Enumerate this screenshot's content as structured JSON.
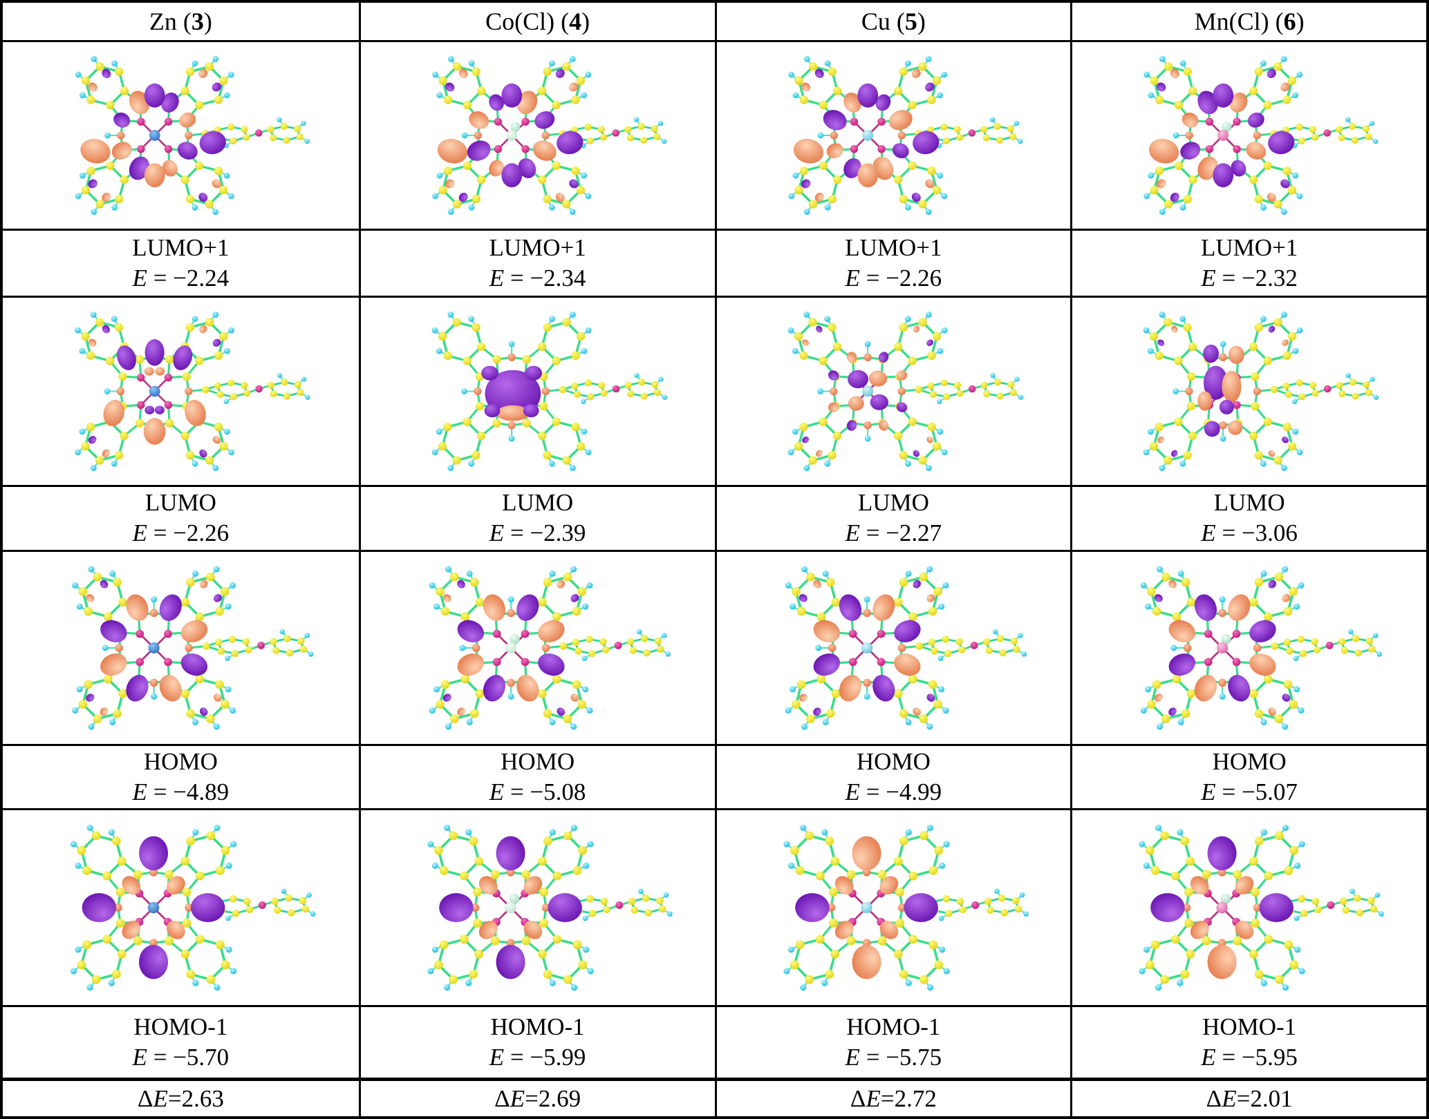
{
  "figure": {
    "type": "molecular-orbital-table",
    "symbols": {
      "e": "E",
      "equals": " = ",
      "delta": "Δ"
    },
    "row_labels": {
      "lumo1": "LUMO+1",
      "lumo": "LUMO",
      "homo": "HOMO",
      "homo1": "HOMO-1"
    },
    "palette": {
      "carbon": "#ecdf12",
      "hydrogen": "#2fc9e2",
      "nitrogen_inner": "#d02387",
      "nitrogen_meso": "#ef9273",
      "bond": "#3bdc8b",
      "lobe_positive": "#7b1fc4",
      "lobe_negative": "#ee9472",
      "background": "#ffffff",
      "border": "#000000"
    },
    "columns": [
      {
        "id": "zn",
        "header": {
          "prefix": "Zn (",
          "number": "3",
          "suffix": ")"
        },
        "metal": {
          "light": "#8cc2f2",
          "dark": "#2d6ec1"
        },
        "axial_ligand": false,
        "orbitals": {
          "lumo1": {
            "value": "−2.24",
            "pattern": "scatter",
            "phase": 0
          },
          "lumo": {
            "value": "−2.26",
            "pattern": "vert4",
            "phase": 0
          },
          "homo": {
            "value": "−4.89",
            "pattern": "ring8",
            "phase": 0
          },
          "homo1": {
            "value": "−5.70",
            "pattern": "cross4",
            "phase": 0,
            "lobes": [
              "p",
              "p",
              "p",
              "p"
            ]
          }
        },
        "delta_e": "2.63"
      },
      {
        "id": "co",
        "header": {
          "prefix": "Co(Cl) (",
          "number": "4",
          "suffix": ")"
        },
        "metal": {
          "light": "#f4fcf7",
          "dark": "#bfe2cd"
        },
        "axial_ligand": true,
        "orbitals": {
          "lumo1": {
            "value": "−2.34",
            "pattern": "scatter",
            "phase": 1
          },
          "lumo": {
            "value": "−2.39",
            "pattern": "central_giant",
            "phase": 1
          },
          "homo": {
            "value": "−5.08",
            "pattern": "ring8",
            "phase": 0
          },
          "homo1": {
            "value": "−5.99",
            "pattern": "cross4",
            "phase": 1,
            "lobes": [
              "p",
              "p",
              "p",
              "p"
            ]
          }
        },
        "delta_e": "2.69"
      },
      {
        "id": "cu",
        "header": {
          "prefix": "Cu (",
          "number": "5",
          "suffix": ")"
        },
        "metal": {
          "light": "#d9f5fb",
          "dark": "#64c2d9"
        },
        "axial_ligand": false,
        "orbitals": {
          "lumo1": {
            "value": "−2.26",
            "pattern": "scatter",
            "phase": 2
          },
          "lumo": {
            "value": "−2.27",
            "pattern": "central_med",
            "phase": 2
          },
          "homo": {
            "value": "−4.99",
            "pattern": "ring8",
            "phase": 1
          },
          "homo1": {
            "value": "−5.75",
            "pattern": "cross4",
            "phase": 2,
            "lobes": [
              "s",
              "p",
              "s",
              "p"
            ]
          }
        },
        "delta_e": "2.72"
      },
      {
        "id": "mn",
        "header": {
          "prefix": "Mn(Cl) (",
          "number": "6",
          "suffix": ")"
        },
        "metal": {
          "light": "#f8c2de",
          "dark": "#dd62a8"
        },
        "axial_ligand": true,
        "orbitals": {
          "lumo1": {
            "value": "−2.32",
            "pattern": "scatter",
            "phase": 3
          },
          "lumo": {
            "value": "−3.06",
            "pattern": "central_lg",
            "phase": 3
          },
          "homo": {
            "value": "−5.07",
            "pattern": "ring8",
            "phase": 1
          },
          "homo1": {
            "value": "−5.95",
            "pattern": "cross4",
            "phase": 3,
            "lobes": [
              "p",
              "p",
              "s",
              "p"
            ]
          }
        },
        "delta_e": "2.01"
      }
    ]
  }
}
